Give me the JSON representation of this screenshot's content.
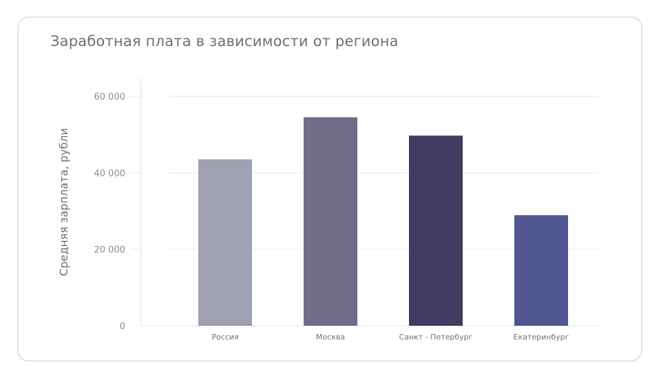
{
  "chart_data": {
    "type": "bar",
    "title": "Заработная плата в зависимости от региона",
    "ylabel": "Средняя зарплата, рубли",
    "xlabel": "",
    "categories": [
      "Россия",
      "Москва",
      "Санкт - Петербург",
      "Екатеринбург"
    ],
    "values": [
      43500,
      54500,
      49700,
      28900
    ],
    "bar_colors": [
      "#9fa0b1",
      "#716d88",
      "#403c62",
      "#515690"
    ],
    "ylim": [
      0,
      60000
    ],
    "yticks": [
      0,
      20000,
      40000,
      60000
    ],
    "ytick_labels": [
      "0",
      "20 000",
      "40 000",
      "60 000"
    ],
    "grid": true,
    "legend": "none"
  }
}
